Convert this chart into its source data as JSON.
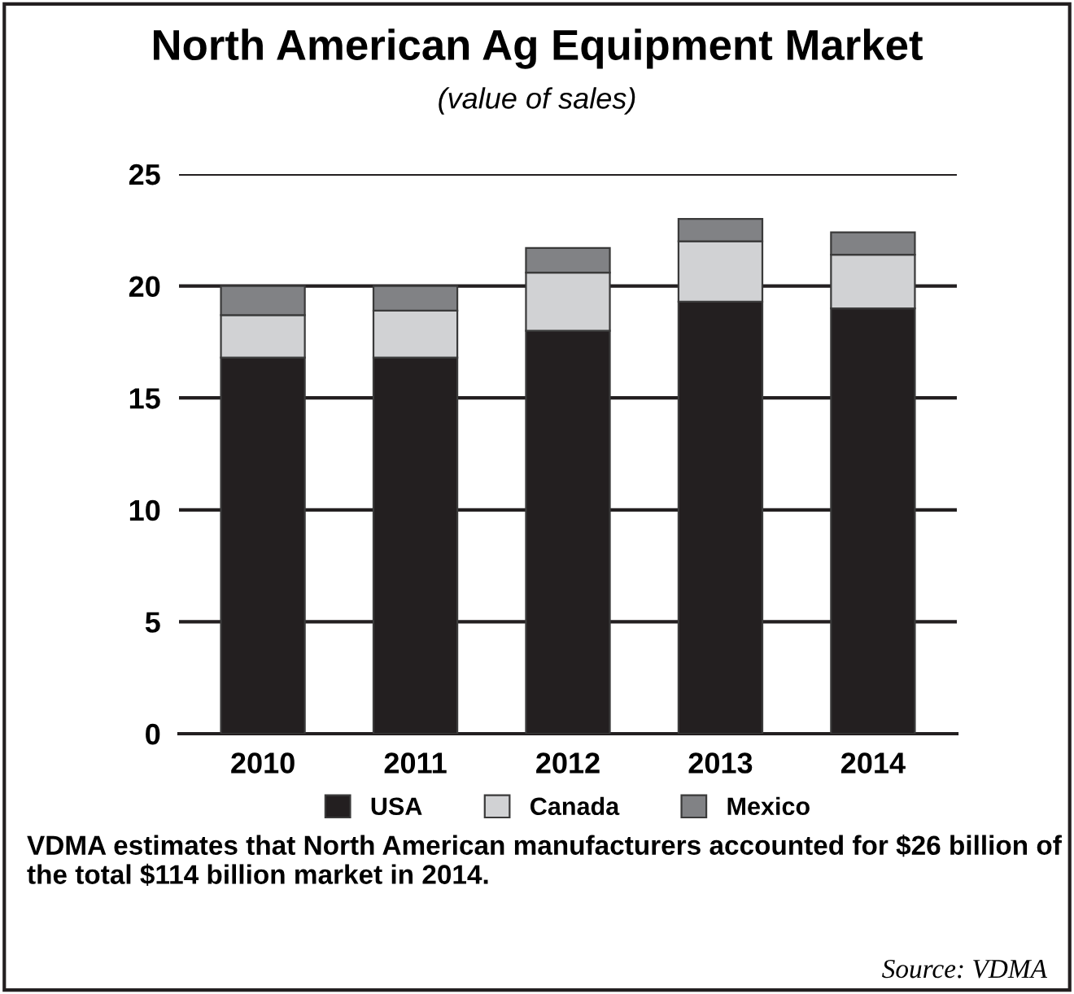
{
  "chart_data": {
    "type": "bar",
    "title": "North American Ag Equipment Market",
    "subtitle": "(value of sales)",
    "categories": [
      "2010",
      "2011",
      "2012",
      "2013",
      "2014"
    ],
    "stacked": true,
    "series": [
      {
        "name": "USA",
        "color": "#231f20",
        "values": [
          16.8,
          16.8,
          18.0,
          19.3,
          19.0
        ]
      },
      {
        "name": "Canada",
        "color": "#d1d2d4",
        "values": [
          1.9,
          2.1,
          2.6,
          2.7,
          2.4
        ]
      },
      {
        "name": "Mexico",
        "color": "#818285",
        "values": [
          1.3,
          1.1,
          1.1,
          1.0,
          1.0
        ]
      }
    ],
    "ylim": [
      0,
      25
    ],
    "yticks": [
      0,
      5,
      10,
      15,
      20,
      25
    ],
    "grid": "y",
    "legend": "bottom",
    "annotations": [
      "VDMA estimates that North American manufacturers accounted for $26 billion of the total $114 billion market in 2014.",
      "Source: VDMA"
    ]
  }
}
